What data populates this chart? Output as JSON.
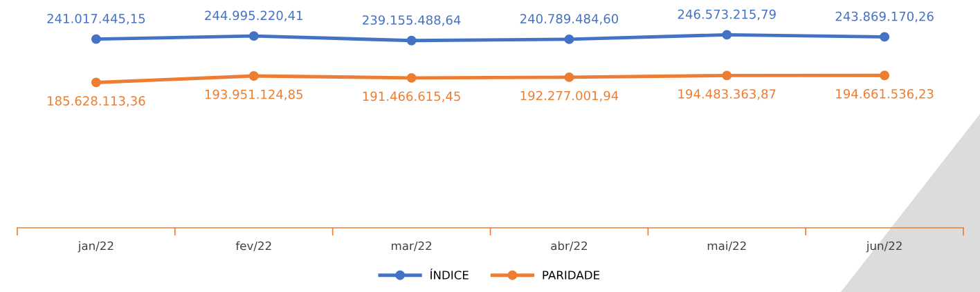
{
  "chart_data": {
    "type": "line",
    "categories": [
      "jan/22",
      "fev/22",
      "mar/22",
      "abr/22",
      "mai/22",
      "jun/22"
    ],
    "series": [
      {
        "name": "ÍNDICE",
        "color": "#4472c4",
        "values": [
          241017445.15,
          244995220.41,
          239155488.64,
          240789484.6,
          246573215.79,
          243869170.26
        ],
        "value_labels": [
          "241.017.445,15",
          "244.995.220,41",
          "239.155.488,64",
          "240.789.484,60",
          "246.573.215,79",
          "243.869.170,26"
        ]
      },
      {
        "name": "PARIDADE",
        "color": "#ed7d31",
        "values": [
          185628113.36,
          193951124.85,
          191466615.45,
          192277001.94,
          194483363.87,
          194661536.23
        ],
        "value_labels": [
          "185.628.113,36",
          "193.951.124,85",
          "191.466.615,45",
          "192.277.001,94",
          "194.483.363,87",
          "194.661.536,23"
        ]
      }
    ],
    "tick_labels": "x",
    "marker": "circle",
    "line_style": "solid",
    "grid": false,
    "legend": "bottom"
  }
}
